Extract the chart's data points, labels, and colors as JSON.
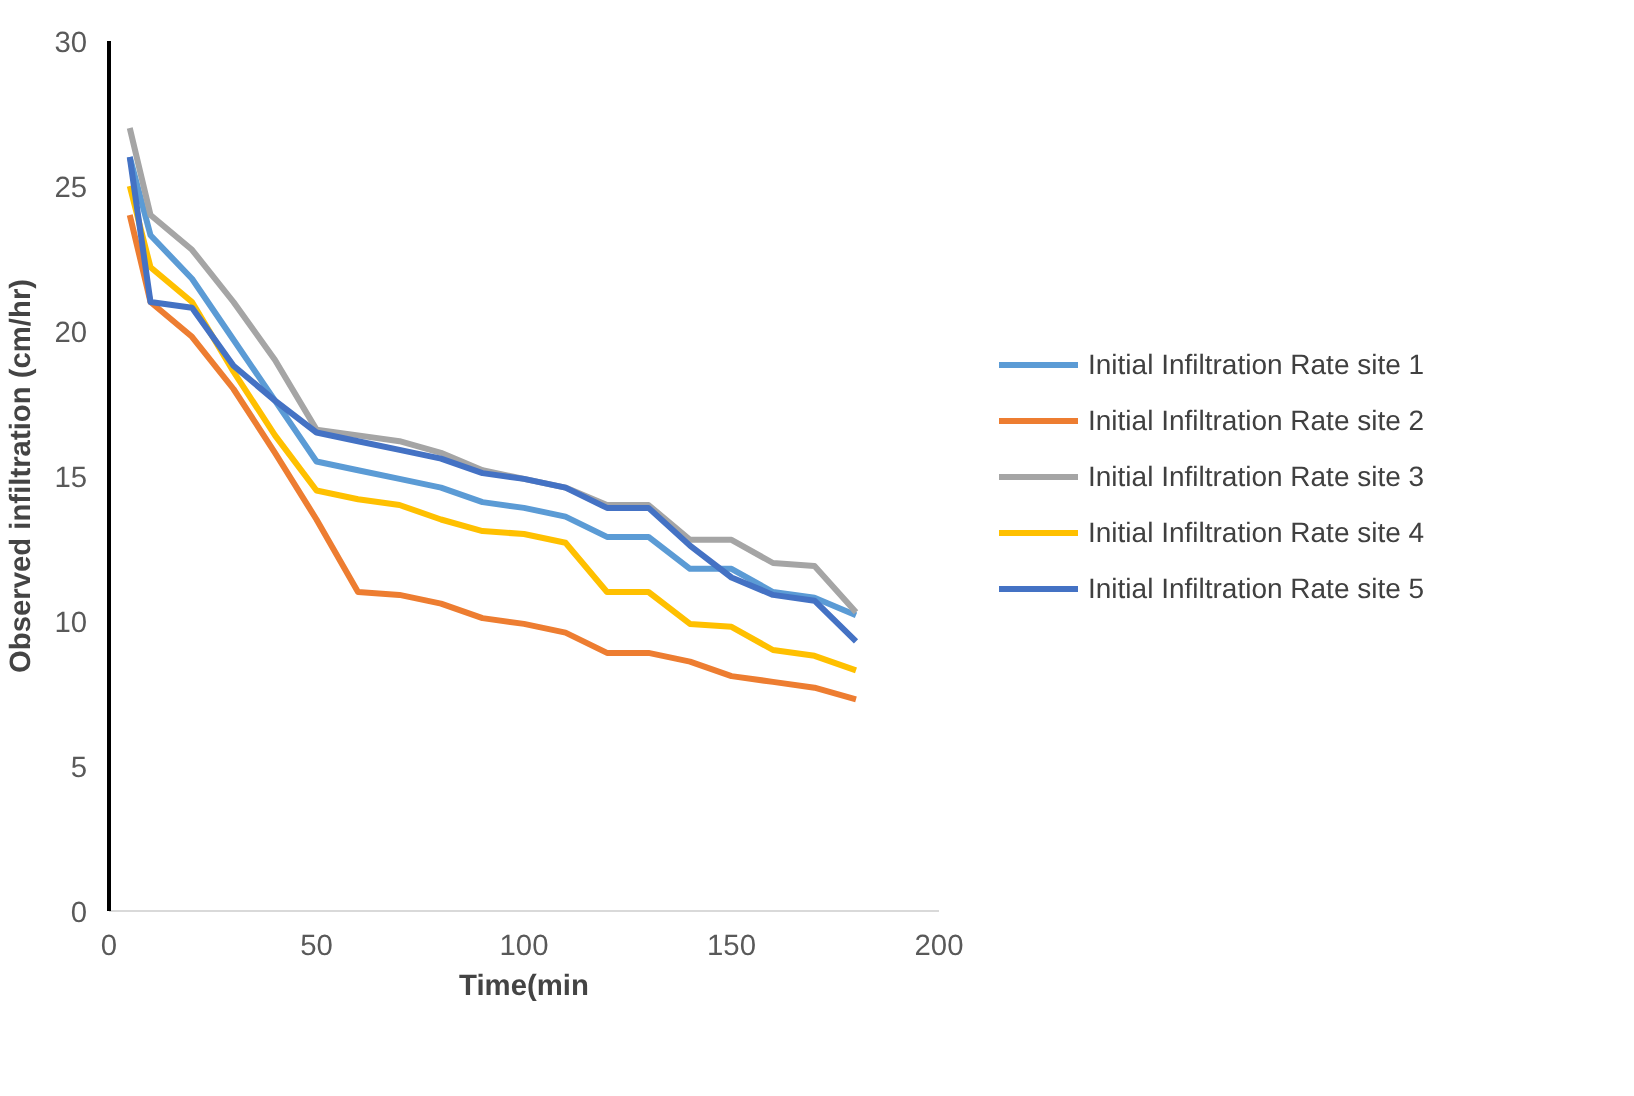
{
  "chart_data": {
    "type": "line",
    "xlabel": "Time(min",
    "ylabel": "Observed infiltration (cm/hr)",
    "x": [
      5,
      10,
      20,
      30,
      40,
      50,
      60,
      70,
      80,
      90,
      100,
      110,
      120,
      130,
      140,
      150,
      160,
      170,
      180
    ],
    "series": [
      {
        "name": "Initial Infiltration Rate site 1",
        "color": "#5b9bd5",
        "values": [
          26,
          23.3,
          21.8,
          19.7,
          17.6,
          15.5,
          15.2,
          14.9,
          14.6,
          14.1,
          13.9,
          13.6,
          12.9,
          12.9,
          11.8,
          11.8,
          11.0,
          10.8,
          10.2
        ]
      },
      {
        "name": "Initial Infiltration Rate site 2",
        "color": "#ed7d31",
        "values": [
          24,
          21,
          19.8,
          18.0,
          15.8,
          13.5,
          11.0,
          10.9,
          10.6,
          10.1,
          9.9,
          9.6,
          8.9,
          8.9,
          8.6,
          8.1,
          7.9,
          7.7,
          7.3
        ]
      },
      {
        "name": "Initial Infiltration Rate site 3",
        "color": "#a5a5a5",
        "values": [
          27,
          24,
          22.8,
          21.0,
          19.0,
          16.6,
          16.4,
          16.2,
          15.8,
          15.2,
          14.9,
          14.6,
          14.0,
          14.0,
          12.8,
          12.8,
          12.0,
          11.9,
          10.3
        ]
      },
      {
        "name": "Initial Infiltration Rate site 4",
        "color": "#ffc000",
        "values": [
          25,
          22.2,
          21.0,
          18.6,
          16.4,
          14.5,
          14.2,
          14.0,
          13.5,
          13.1,
          13.0,
          12.7,
          11.0,
          11.0,
          9.9,
          9.8,
          9.0,
          8.8,
          8.3
        ]
      },
      {
        "name": "Initial Infiltration Rate site 5",
        "color": "#4472c4",
        "values": [
          26,
          21,
          20.8,
          18.8,
          17.6,
          16.5,
          16.2,
          15.9,
          15.6,
          15.1,
          14.9,
          14.6,
          13.9,
          13.9,
          12.6,
          11.5,
          10.9,
          10.7,
          9.3
        ]
      }
    ],
    "xlim": [
      0,
      200
    ],
    "xticks": [
      0,
      50,
      100,
      150,
      200
    ],
    "ylim": [
      0,
      30
    ],
    "yticks": [
      0,
      5,
      10,
      15,
      20,
      25,
      30
    ],
    "grid": false,
    "legend": "right",
    "marker": "none",
    "line_style": "solid"
  }
}
